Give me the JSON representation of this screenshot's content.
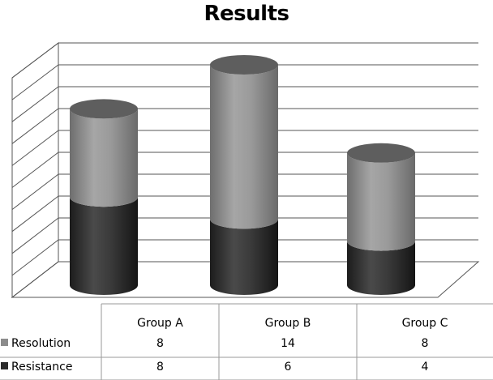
{
  "chart_data": {
    "type": "bar",
    "stacked": true,
    "style": "3d-cylinder",
    "title": "Results",
    "categories": [
      "Group A",
      "Group B",
      "Group C"
    ],
    "series": [
      {
        "name": "Resistance",
        "values": [
          8,
          6,
          4
        ],
        "color": "#2a2a2a"
      },
      {
        "name": "Resolution",
        "values": [
          8,
          14,
          8
        ],
        "color": "#8c8c8c"
      }
    ],
    "ylim": [
      0,
      20
    ],
    "grid": true,
    "legend": "data-table-left"
  }
}
